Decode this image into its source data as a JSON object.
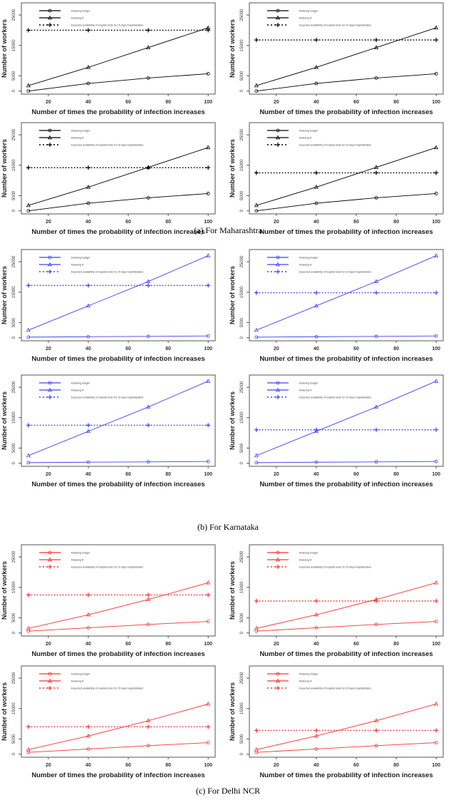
{
  "captions": [
    "(a)  For Maharashtra",
    "(b)  For Karnataka",
    "(c)  For Delhi NCR"
  ],
  "common": {
    "xlabel": "Number of times the probability of infection increases",
    "ylabel": "Number of workers",
    "xticks": [
      20,
      40,
      60,
      80,
      100
    ],
    "yticks": [
      0,
      5000,
      15000,
      25000
    ],
    "xlim": [
      6.5,
      103.5
    ],
    "ylim": [
      -1000,
      29000
    ],
    "x": [
      10,
      40,
      70,
      100
    ],
    "legend": [
      "Relaxing budget",
      "Relaxing R",
      "Expected availability of hospital beds for 15 days hospitalization"
    ]
  },
  "chart_data": [
    {
      "type": "line",
      "region": "Maharashtra",
      "color": "#000000",
      "series": [
        {
          "name": "Relaxing budget",
          "values": [
            0,
            2500,
            4300,
            5700
          ]
        },
        {
          "name": "Relaxing R",
          "values": [
            1800,
            7800,
            14300,
            20800
          ]
        },
        {
          "name": "Expected availability of hospital beds for 15 days hospitalization",
          "values": [
            20000,
            20000,
            20000,
            20000
          ]
        }
      ]
    },
    {
      "type": "line",
      "region": "Maharashtra",
      "color": "#000000",
      "series": [
        {
          "name": "Relaxing budget",
          "values": [
            0,
            2500,
            4300,
            5700
          ]
        },
        {
          "name": "Relaxing R",
          "values": [
            1800,
            7800,
            14300,
            20800
          ]
        },
        {
          "name": "Expected availability of hospital beds for 15 days hospitalization",
          "values": [
            16800,
            16800,
            16800,
            16800
          ]
        }
      ]
    },
    {
      "type": "line",
      "region": "Maharashtra",
      "color": "#000000",
      "series": [
        {
          "name": "Relaxing budget",
          "values": [
            0,
            2500,
            4300,
            5700
          ]
        },
        {
          "name": "Relaxing R",
          "values": [
            1800,
            7800,
            14300,
            20800
          ]
        },
        {
          "name": "Expected availability of hospital beds for 15 days hospitalization",
          "values": [
            14200,
            14200,
            14200,
            14200
          ]
        }
      ]
    },
    {
      "type": "line",
      "region": "Maharashtra",
      "color": "#000000",
      "series": [
        {
          "name": "Relaxing budget",
          "values": [
            0,
            2500,
            4300,
            5700
          ]
        },
        {
          "name": "Relaxing R",
          "values": [
            1800,
            7800,
            14300,
            20800
          ]
        },
        {
          "name": "Expected availability of hospital beds for 15 days hospitalization",
          "values": [
            12500,
            12500,
            12500,
            12500
          ]
        }
      ]
    },
    {
      "type": "line",
      "region": "Karnataka",
      "color": "#4040ff",
      "series": [
        {
          "name": "Relaxing budget",
          "values": [
            200,
            350,
            450,
            600
          ]
        },
        {
          "name": "Relaxing R",
          "values": [
            2500,
            10500,
            18500,
            27000
          ]
        },
        {
          "name": "Expected availability of hospital beds for 15 days hospitalization",
          "values": [
            17200,
            17200,
            17200,
            17200
          ]
        }
      ]
    },
    {
      "type": "line",
      "region": "Karnataka",
      "color": "#4040ff",
      "series": [
        {
          "name": "Relaxing budget",
          "values": [
            200,
            350,
            450,
            600
          ]
        },
        {
          "name": "Relaxing R",
          "values": [
            2500,
            10500,
            18500,
            27000
          ]
        },
        {
          "name": "Expected availability of hospital beds for 15 days hospitalization",
          "values": [
            14800,
            14800,
            14800,
            14800
          ]
        }
      ]
    },
    {
      "type": "line",
      "region": "Karnataka",
      "color": "#4040ff",
      "series": [
        {
          "name": "Relaxing budget",
          "values": [
            200,
            350,
            450,
            600
          ]
        },
        {
          "name": "Relaxing R",
          "values": [
            2500,
            10500,
            18500,
            27000
          ]
        },
        {
          "name": "Expected availability of hospital beds for 15 days hospitalization",
          "values": [
            12500,
            12500,
            12500,
            12500
          ]
        }
      ]
    },
    {
      "type": "line",
      "region": "Karnataka",
      "color": "#4040ff",
      "series": [
        {
          "name": "Relaxing budget",
          "values": [
            200,
            350,
            450,
            600
          ]
        },
        {
          "name": "Relaxing R",
          "values": [
            2500,
            10500,
            18500,
            27000
          ]
        },
        {
          "name": "Expected availability of hospital beds for 15 days hospitalization",
          "values": [
            11000,
            11000,
            11000,
            11000
          ]
        }
      ]
    },
    {
      "type": "line",
      "region": "Delhi NCR",
      "color": "#ff3030",
      "series": [
        {
          "name": "Relaxing budget",
          "values": [
            600,
            1700,
            2800,
            3800
          ]
        },
        {
          "name": "Relaxing R",
          "values": [
            1500,
            6000,
            11000,
            16500
          ]
        },
        {
          "name": "Expected availability of hospital beds for 15 days hospitalization",
          "values": [
            12500,
            12500,
            12500,
            12500
          ]
        }
      ]
    },
    {
      "type": "line",
      "region": "Delhi NCR",
      "color": "#ff3030",
      "series": [
        {
          "name": "Relaxing budget",
          "values": [
            600,
            1700,
            2800,
            3800
          ]
        },
        {
          "name": "Relaxing R",
          "values": [
            1500,
            6000,
            11000,
            16500
          ]
        },
        {
          "name": "Expected availability of hospital beds for 15 days hospitalization",
          "values": [
            10500,
            10500,
            10500,
            10500
          ]
        }
      ]
    },
    {
      "type": "line",
      "region": "Delhi NCR",
      "color": "#ff3030",
      "series": [
        {
          "name": "Relaxing budget",
          "values": [
            600,
            1700,
            2800,
            3800
          ]
        },
        {
          "name": "Relaxing R",
          "values": [
            1500,
            6000,
            11000,
            16500
          ]
        },
        {
          "name": "Expected availability of hospital beds for 15 days hospitalization",
          "values": [
            9000,
            9000,
            9000,
            9000
          ]
        }
      ]
    },
    {
      "type": "line",
      "region": "Delhi NCR",
      "color": "#ff3030",
      "series": [
        {
          "name": "Relaxing budget",
          "values": [
            600,
            1700,
            2800,
            3800
          ]
        },
        {
          "name": "Relaxing R",
          "values": [
            1500,
            6000,
            11000,
            16500
          ]
        },
        {
          "name": "Expected availability of hospital beds for 15 days hospitalization",
          "values": [
            7800,
            7800,
            7800,
            7800
          ]
        }
      ]
    }
  ]
}
